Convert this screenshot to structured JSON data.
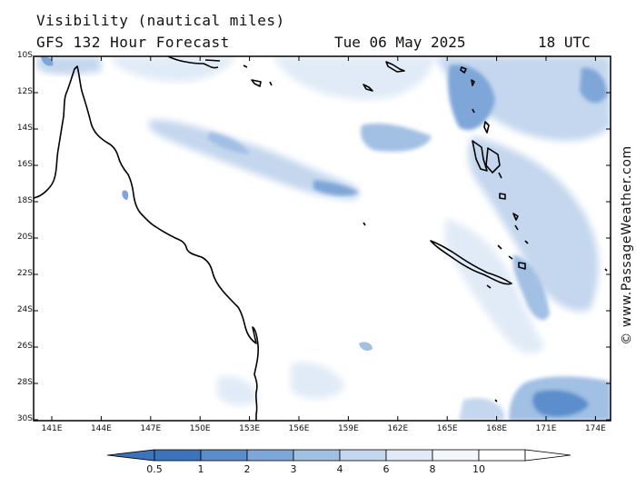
{
  "title": "Visibility (nautical miles)",
  "subtitle": "GFS 132 Hour Forecast",
  "forecast_date": "Tue 06 May 2025",
  "forecast_time": "18 UTC",
  "credit": "© www.PassageWeather.com",
  "lat_labels": [
    "10S",
    "12S",
    "14S",
    "16S",
    "18S",
    "20S",
    "22S",
    "24S",
    "26S",
    "28S",
    "30S"
  ],
  "lon_labels": [
    "141E",
    "144E",
    "147E",
    "150E",
    "153E",
    "156E",
    "159E",
    "162E",
    "165E",
    "168E",
    "171E",
    "174E"
  ],
  "colorbar": {
    "labels": [
      "0.5",
      "1",
      "2",
      "3",
      "4",
      "6",
      "8",
      "10"
    ],
    "colors": [
      "#3c73bd",
      "#5b8dcc",
      "#7fa6d8",
      "#a2bfe4",
      "#c4d7ee",
      "#e1ebf7",
      "#f3f7fc",
      "#ffffff"
    ]
  },
  "colors": {
    "land_outline": "#000000",
    "frame": "#000000",
    "background": "#ffffff"
  }
}
